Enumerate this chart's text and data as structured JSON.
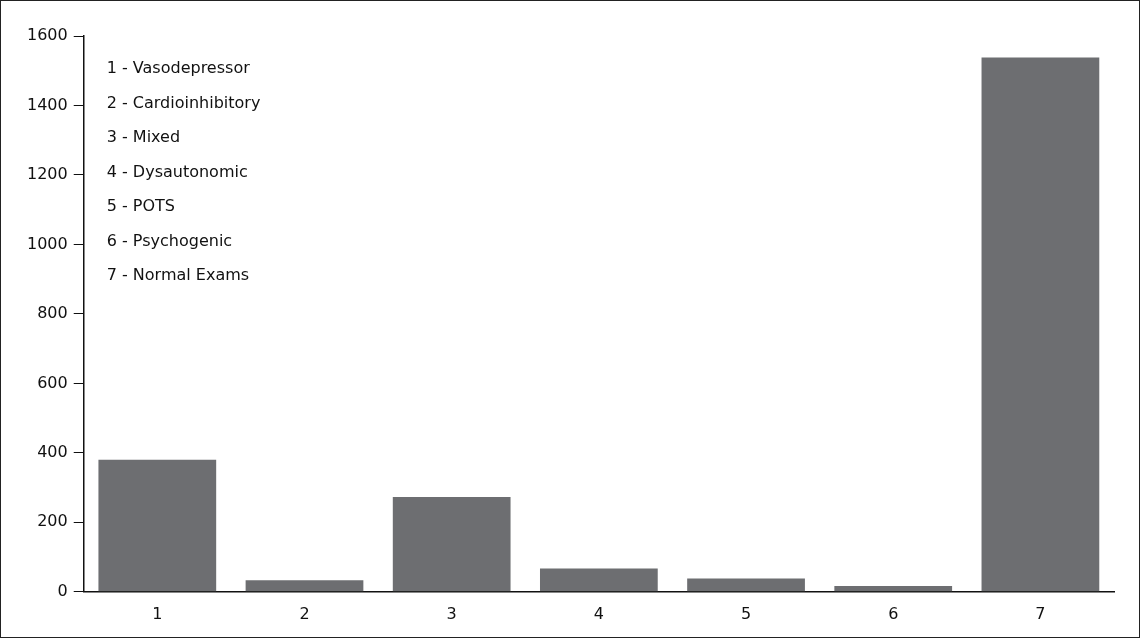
{
  "chart_data": {
    "type": "bar",
    "categories": [
      "1",
      "2",
      "3",
      "4",
      "5",
      "6",
      "7"
    ],
    "values": [
      380,
      33,
      273,
      67,
      38,
      17,
      1538
    ],
    "color": "#6d6e71",
    "ylim": [
      0,
      1600
    ],
    "yticks": [
      0,
      200,
      400,
      600,
      800,
      1000,
      1200,
      1400,
      1600
    ],
    "grid": false,
    "legend": false,
    "annotations": [
      "1 - Vasodepressor",
      "2 - Cardioinhibitory",
      "3 - Mixed",
      "4 - Dysautonomic",
      "5 - POTS",
      "6 - Psychogenic",
      "7 - Normal Exams"
    ]
  }
}
